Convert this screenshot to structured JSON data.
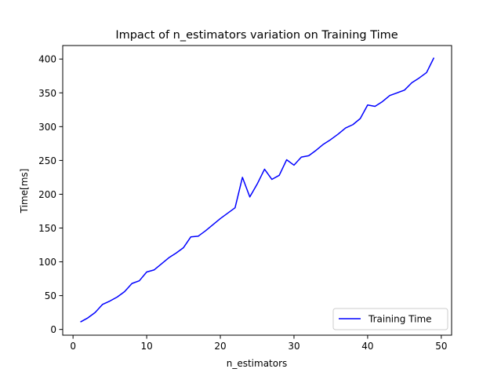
{
  "chart_data": {
    "type": "line",
    "title": "Impact of n_estimators variation on Training Time",
    "xlabel": "n_estimators",
    "ylabel": "Time[ms]",
    "xlim": [
      -1.4,
      51.4
    ],
    "ylim": [
      -8.5,
      420
    ],
    "xticks": [
      0,
      10,
      20,
      30,
      40,
      50
    ],
    "yticks": [
      0,
      50,
      100,
      150,
      200,
      250,
      300,
      350,
      400
    ],
    "grid": false,
    "legend": {
      "position": "lower-right"
    },
    "series": [
      {
        "name": "Training Time",
        "color": "#0000ff",
        "x": [
          1,
          2,
          3,
          4,
          5,
          6,
          7,
          8,
          9,
          10,
          11,
          12,
          13,
          14,
          15,
          16,
          17,
          18,
          19,
          20,
          21,
          22,
          23,
          24,
          25,
          26,
          27,
          28,
          29,
          30,
          31,
          32,
          33,
          34,
          35,
          36,
          37,
          38,
          39,
          40,
          41,
          42,
          43,
          44,
          45,
          46,
          47,
          48,
          49
        ],
        "y": [
          11,
          17,
          25,
          37,
          42,
          48,
          56,
          68,
          72,
          85,
          88,
          97,
          106,
          113,
          121,
          137,
          138,
          146,
          155,
          164,
          172,
          180,
          225,
          196,
          215,
          237,
          222,
          228,
          251,
          243,
          255,
          257,
          265,
          274,
          281,
          289,
          298,
          303,
          312,
          332,
          330,
          337,
          346,
          350,
          354,
          365,
          372,
          380,
          402
        ]
      }
    ]
  }
}
